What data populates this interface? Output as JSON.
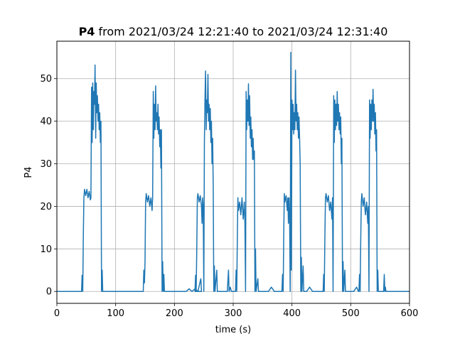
{
  "chart_data": {
    "type": "line",
    "title_bold": "P4",
    "title_rest": " from 2021/03/24 12:21:40 to 2021/03/24 12:31:40",
    "xlabel": "time (s)",
    "ylabel": "P4",
    "xlim": [
      0,
      600
    ],
    "ylim": [
      -2.8,
      58.8
    ],
    "xticks": [
      0,
      100,
      200,
      300,
      400,
      500,
      600
    ],
    "yticks": [
      0,
      10,
      20,
      30,
      40,
      50
    ],
    "grid": true,
    "legend": "none",
    "series": [
      {
        "color": "#1f77b4",
        "points": [
          [
            0,
            0
          ],
          [
            42,
            0
          ],
          [
            43,
            3.8
          ],
          [
            44,
            0
          ],
          [
            45,
            13
          ],
          [
            46,
            22
          ],
          [
            47,
            24
          ],
          [
            49,
            22.5
          ],
          [
            51,
            24
          ],
          [
            53,
            22
          ],
          [
            55,
            23.5
          ],
          [
            57,
            21.5
          ],
          [
            58,
            22
          ],
          [
            59,
            48
          ],
          [
            60,
            35
          ],
          [
            61,
            49
          ],
          [
            62,
            38
          ],
          [
            63,
            47
          ],
          [
            64,
            44
          ],
          [
            65,
            53.2
          ],
          [
            66,
            36
          ],
          [
            67,
            49
          ],
          [
            68,
            42
          ],
          [
            69,
            46
          ],
          [
            70,
            40
          ],
          [
            71,
            44
          ],
          [
            72,
            38
          ],
          [
            73,
            42
          ],
          [
            74,
            35
          ],
          [
            75,
            40
          ],
          [
            76,
            0
          ],
          [
            77,
            5
          ],
          [
            78,
            0
          ],
          [
            147,
            0
          ],
          [
            148,
            5
          ],
          [
            149,
            2
          ],
          [
            150,
            7
          ],
          [
            151,
            21
          ],
          [
            152,
            23
          ],
          [
            154,
            21
          ],
          [
            156,
            22.5
          ],
          [
            158,
            20
          ],
          [
            160,
            22
          ],
          [
            162,
            19
          ],
          [
            163,
            22
          ],
          [
            164,
            47
          ],
          [
            165,
            36
          ],
          [
            166,
            44
          ],
          [
            167,
            38
          ],
          [
            168,
            48.3
          ],
          [
            169,
            40
          ],
          [
            170,
            42
          ],
          [
            171,
            38
          ],
          [
            172,
            44
          ],
          [
            173,
            37
          ],
          [
            174,
            41
          ],
          [
            175,
            34
          ],
          [
            176,
            38
          ],
          [
            177,
            29
          ],
          [
            178,
            38
          ],
          [
            179,
            0
          ],
          [
            180,
            7
          ],
          [
            181,
            0
          ],
          [
            182,
            4
          ],
          [
            183,
            0
          ],
          [
            210,
            0
          ],
          [
            220,
            0
          ],
          [
            225,
            0.6
          ],
          [
            230,
            0
          ],
          [
            235,
            0.6
          ],
          [
            240,
            0
          ],
          [
            245,
            3
          ],
          [
            246,
            0
          ],
          [
            235,
            0
          ],
          [
            236,
            3.8
          ],
          [
            237,
            0
          ],
          [
            238,
            9
          ],
          [
            239,
            22
          ],
          [
            240,
            23
          ],
          [
            242,
            21
          ],
          [
            244,
            22.5
          ],
          [
            246,
            20
          ],
          [
            247,
            16
          ],
          [
            248,
            22
          ],
          [
            249,
            20
          ],
          [
            250,
            0
          ],
          [
            251,
            35
          ],
          [
            252,
            45
          ],
          [
            253,
            51.8
          ],
          [
            254,
            38
          ],
          [
            255,
            45
          ],
          [
            256,
            42
          ],
          [
            257,
            51
          ],
          [
            258,
            40
          ],
          [
            259,
            44
          ],
          [
            260,
            38
          ],
          [
            261,
            43
          ],
          [
            262,
            35
          ],
          [
            263,
            40
          ],
          [
            264,
            30
          ],
          [
            265,
            36
          ],
          [
            266,
            25
          ],
          [
            267,
            0
          ],
          [
            268,
            6
          ],
          [
            269,
            0
          ],
          [
            272,
            5
          ],
          [
            273,
            0
          ],
          [
            290,
            0
          ],
          [
            292,
            5
          ],
          [
            293,
            0
          ],
          [
            295,
            1
          ],
          [
            297,
            0
          ],
          [
            304,
            0
          ],
          [
            305,
            5
          ],
          [
            306,
            0
          ],
          [
            307,
            12
          ],
          [
            308,
            22
          ],
          [
            309,
            19
          ],
          [
            311,
            21
          ],
          [
            313,
            18
          ],
          [
            315,
            22
          ],
          [
            317,
            17
          ],
          [
            319,
            21
          ],
          [
            320,
            16
          ],
          [
            321,
            0
          ],
          [
            322,
            47
          ],
          [
            323,
            38
          ],
          [
            324,
            45
          ],
          [
            325,
            40
          ],
          [
            326,
            48.8
          ],
          [
            327,
            39
          ],
          [
            328,
            46
          ],
          [
            329,
            36
          ],
          [
            330,
            41
          ],
          [
            331,
            34
          ],
          [
            332,
            38
          ],
          [
            333,
            31
          ],
          [
            334,
            36
          ],
          [
            335,
            31
          ],
          [
            336,
            33
          ],
          [
            337,
            0
          ],
          [
            338,
            10
          ],
          [
            339,
            0
          ],
          [
            342,
            3
          ],
          [
            343,
            0
          ],
          [
            355,
            0
          ],
          [
            360,
            0
          ],
          [
            365,
            1
          ],
          [
            370,
            0
          ],
          [
            383,
            0
          ],
          [
            384,
            4
          ],
          [
            385,
            0
          ],
          [
            386,
            13
          ],
          [
            387,
            23
          ],
          [
            388,
            21
          ],
          [
            390,
            22.5
          ],
          [
            392,
            19
          ],
          [
            393,
            22
          ],
          [
            394,
            16
          ],
          [
            395,
            22
          ],
          [
            396,
            17
          ],
          [
            397,
            0
          ],
          [
            398,
            56.2
          ],
          [
            399,
            5
          ],
          [
            400,
            45
          ],
          [
            401,
            38
          ],
          [
            402,
            44
          ],
          [
            403,
            37
          ],
          [
            404,
            42
          ],
          [
            405,
            38
          ],
          [
            406,
            52
          ],
          [
            407,
            40
          ],
          [
            408,
            44
          ],
          [
            409,
            38
          ],
          [
            410,
            42
          ],
          [
            411,
            36
          ],
          [
            412,
            41
          ],
          [
            413,
            36
          ],
          [
            414,
            30
          ],
          [
            415,
            0
          ],
          [
            416,
            8
          ],
          [
            417,
            0
          ],
          [
            419,
            6
          ],
          [
            420,
            0
          ],
          [
            425,
            0
          ],
          [
            430,
            1
          ],
          [
            435,
            0
          ],
          [
            453,
            0
          ],
          [
            454,
            4
          ],
          [
            455,
            0
          ],
          [
            456,
            13
          ],
          [
            457,
            22
          ],
          [
            458,
            23
          ],
          [
            460,
            21
          ],
          [
            462,
            22.5
          ],
          [
            464,
            19
          ],
          [
            466,
            21
          ],
          [
            468,
            17
          ],
          [
            469,
            22
          ],
          [
            470,
            0
          ],
          [
            471,
            46
          ],
          [
            472,
            35
          ],
          [
            473,
            45
          ],
          [
            474,
            38
          ],
          [
            475,
            44
          ],
          [
            476,
            39
          ],
          [
            477,
            47
          ],
          [
            478,
            40
          ],
          [
            479,
            44
          ],
          [
            480,
            38
          ],
          [
            481,
            42
          ],
          [
            482,
            37
          ],
          [
            483,
            41
          ],
          [
            484,
            30
          ],
          [
            485,
            36
          ],
          [
            486,
            0
          ],
          [
            487,
            7
          ],
          [
            488,
            0
          ],
          [
            490,
            5
          ],
          [
            491,
            0
          ],
          [
            500,
            0
          ],
          [
            505,
            0
          ],
          [
            510,
            1
          ],
          [
            513,
            0
          ],
          [
            514,
            0
          ],
          [
            515,
            4
          ],
          [
            516,
            0
          ],
          [
            517,
            12
          ],
          [
            518,
            21
          ],
          [
            519,
            23
          ],
          [
            521,
            20
          ],
          [
            523,
            22
          ],
          [
            525,
            18
          ],
          [
            527,
            21
          ],
          [
            529,
            16
          ],
          [
            530,
            20
          ],
          [
            531,
            0
          ],
          [
            532,
            45
          ],
          [
            533,
            36
          ],
          [
            534,
            44
          ],
          [
            535,
            38
          ],
          [
            536,
            45
          ],
          [
            537,
            40
          ],
          [
            538,
            47.5
          ],
          [
            539,
            40
          ],
          [
            540,
            44
          ],
          [
            541,
            37
          ],
          [
            542,
            42
          ],
          [
            543,
            33
          ],
          [
            544,
            38
          ],
          [
            545,
            0
          ],
          [
            546,
            5
          ],
          [
            547,
            0
          ],
          [
            556,
            0
          ],
          [
            557,
            4
          ],
          [
            558,
            0
          ],
          [
            559,
            1
          ],
          [
            560,
            0
          ],
          [
            600,
            0
          ]
        ]
      }
    ]
  }
}
